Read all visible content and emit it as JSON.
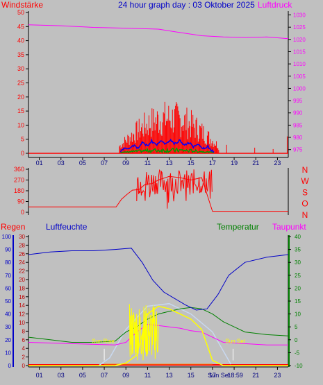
{
  "header": {
    "left_label": "Windstärke",
    "title": "24 hour graph day : 03 Oktober 2025",
    "right_label": "Luftdruck"
  },
  "colors": {
    "background": "#c0c0c0",
    "red": "#ff0000",
    "green": "#008000",
    "blue": "#0000c8",
    "magenta": "#ff00ff",
    "yellow": "#ffff00",
    "lightblue": "#c8d8f0",
    "orange": "#ff8000",
    "deep_red": "#c00000",
    "wind_blue": "#0000ff",
    "wind_green": "#00a000",
    "axis_dark": "#000080",
    "tick_dark": "#000000"
  },
  "chart_data": [
    {
      "type": "bar",
      "name": "wind",
      "x_ticks": [
        "01",
        "03",
        "05",
        "07",
        "09",
        "11",
        "13",
        "15",
        "17",
        "19",
        "21",
        "23"
      ],
      "y_left": {
        "ticks": [
          0,
          5,
          10,
          15,
          20,
          25,
          30,
          35,
          40,
          45,
          50
        ],
        "ylim": [
          0,
          50
        ]
      },
      "y_right": {
        "ticks": [
          975,
          980,
          985,
          990,
          995,
          1000,
          1005,
          1010,
          1015,
          1020,
          1025,
          1030
        ],
        "ylim": [
          973.5,
          1031
        ]
      },
      "pressure_line": {
        "x": [
          0,
          3,
          6,
          9,
          12,
          14,
          16,
          18,
          20,
          22,
          24
        ],
        "y": [
          1026,
          1025.6,
          1024.9,
          1024.6,
          1024.2,
          1022.8,
          1021.5,
          1021,
          1020.8,
          1021,
          1020.3
        ]
      },
      "gust_bars": {
        "x_range": [
          8.4,
          17.6
        ],
        "max": 19
      },
      "wind_lines": [
        "blue",
        "green"
      ]
    },
    {
      "type": "line",
      "name": "wind_direction",
      "y_ticks": [
        "360",
        "270",
        "180",
        "90",
        "0"
      ],
      "ylim": [
        0,
        360
      ],
      "compass": [
        "N",
        "W",
        "S",
        "O",
        "N"
      ],
      "points": [
        [
          0,
          45
        ],
        [
          8.1,
          45
        ],
        [
          8.6,
          110
        ],
        [
          9.1,
          150
        ],
        [
          9.6,
          185
        ],
        [
          10.2,
          190
        ],
        [
          10.8,
          235
        ],
        [
          11.4,
          240
        ],
        [
          12,
          270
        ],
        [
          13,
          300
        ],
        [
          14,
          290
        ],
        [
          15,
          270
        ],
        [
          16,
          290
        ],
        [
          17,
          8
        ],
        [
          19,
          8
        ],
        [
          24,
          8
        ]
      ]
    },
    {
      "type": "line",
      "name": "humidity_temperature",
      "legend": [
        {
          "label": "Regen",
          "color": "#ff0000"
        },
        {
          "label": "Luftfeuchte",
          "color": "#0000c8"
        },
        {
          "label": "Temperatur",
          "color": "#008000"
        },
        {
          "label": "Taupunkt",
          "color": "#ff00ff"
        }
      ],
      "humidity_axis": {
        "ticks": [
          0,
          10,
          20,
          30,
          40,
          50,
          60,
          70,
          80,
          90,
          100
        ],
        "ylim": [
          0,
          100
        ]
      },
      "rain_axis": {
        "ticks": [
          0,
          2,
          4,
          6,
          8,
          10,
          12,
          14,
          16,
          18,
          20,
          22,
          24,
          26,
          28,
          30
        ],
        "ylim": [
          0,
          30
        ]
      },
      "temperature_axis": {
        "ticks": [
          -10,
          -5,
          0,
          5,
          10,
          15,
          20,
          25,
          30,
          35,
          40
        ],
        "ylim": [
          -10,
          40
        ]
      },
      "sun_rise": "Sun Rise",
      "sun_set": "Sun Set",
      "sun_set_time": "Sun Set",
      "sun_set_clock": "18:59",
      "humidity": {
        "x": [
          0,
          2,
          4,
          6,
          8,
          9.5,
          10.5,
          11.5,
          12.5,
          13.5,
          14.5,
          15.5,
          16.5,
          17.5,
          18.5,
          20,
          22,
          24
        ],
        "y": [
          86,
          88,
          89,
          89,
          90,
          91,
          80,
          66,
          57,
          52,
          47,
          43,
          44,
          55,
          70,
          80,
          84,
          86
        ]
      },
      "temperature": {
        "x": [
          0,
          2,
          4,
          6,
          8,
          9,
          10,
          11,
          12,
          13,
          14,
          15,
          16,
          17,
          18,
          19,
          20,
          22,
          24
        ],
        "y": [
          1,
          0,
          -1,
          -1,
          -0.5,
          3,
          5,
          8,
          10,
          11,
          12,
          12.5,
          12,
          10,
          7,
          5,
          3,
          2,
          1.5
        ]
      },
      "dewpoint": {
        "x": [
          0,
          4,
          8,
          9,
          10,
          11,
          12,
          13,
          14,
          15,
          16,
          17,
          18,
          20,
          22,
          24
        ],
        "y": [
          -1,
          -1.5,
          -2,
          -1,
          3,
          6,
          5.5,
          5,
          4.5,
          3.5,
          3,
          1,
          -1,
          -1.5,
          -2,
          -2
        ]
      },
      "solar": {
        "x": [
          0,
          8,
          9,
          10,
          11,
          12,
          13,
          14,
          15,
          16,
          17,
          18,
          24
        ],
        "y": [
          -10,
          -10,
          -9,
          -6,
          10,
          13,
          12,
          10,
          8,
          4,
          -8,
          -10,
          -10
        ]
      },
      "solar_ideal": {
        "x": [
          6.5,
          7.5,
          9,
          11,
          13,
          15,
          17,
          18.7
        ],
        "y": [
          -10,
          -7,
          4,
          13,
          14,
          10,
          3,
          -9.5
        ]
      }
    }
  ]
}
